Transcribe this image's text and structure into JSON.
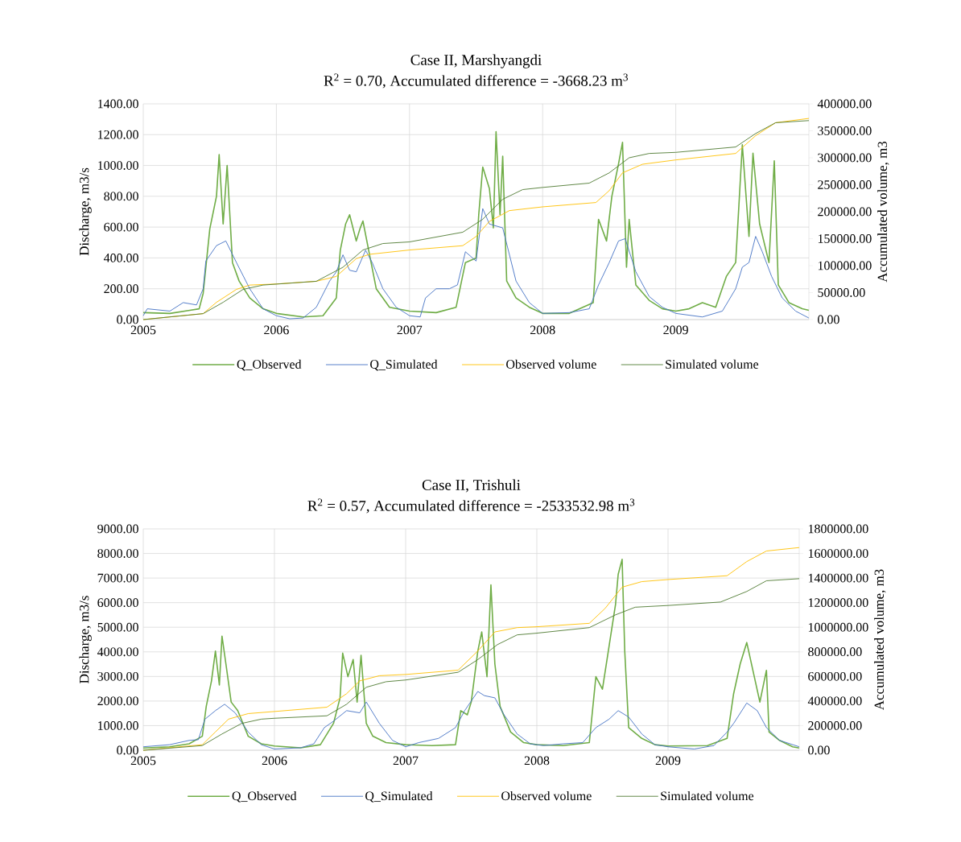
{
  "chart_data": [
    {
      "type": "line",
      "title": "Case II, Marshyangdi",
      "subtitle": "R$^{2}$ = 0.70, Accumulated difference = -3668.23 m$^{3}$",
      "ylabel": "Discharge, m3/s",
      "y2label": "Accumulated volume, m3",
      "xlim": [
        2005,
        2010
      ],
      "xticks": [
        2005,
        2006,
        2007,
        2008,
        2009
      ],
      "ylim": [
        0,
        1400
      ],
      "yticks": [
        {
          "value": 0,
          "label": "0.00"
        },
        {
          "value": 200,
          "label": "200.00"
        },
        {
          "value": 400,
          "label": "400.00"
        },
        {
          "value": 600,
          "label": "600.00"
        },
        {
          "value": 800,
          "label": "800.00"
        },
        {
          "value": 1000,
          "label": "1000.00"
        },
        {
          "value": 1200,
          "label": "1200.00"
        },
        {
          "value": 1400,
          "label": "1400.00"
        }
      ],
      "y2lim": [
        0,
        400000
      ],
      "y2ticks": [
        {
          "value": 0,
          "label": "0.00"
        },
        {
          "value": 50000,
          "label": "50000.00"
        },
        {
          "value": 100000,
          "label": "100000.00"
        },
        {
          "value": 150000,
          "label": "150000.00"
        },
        {
          "value": 200000,
          "label": "200000.00"
        },
        {
          "value": 250000,
          "label": "250000.00"
        },
        {
          "value": 300000,
          "label": "300000.00"
        },
        {
          "value": 350000,
          "label": "350000.00"
        },
        {
          "value": 400000,
          "label": "400000.00"
        }
      ],
      "grid": true,
      "legend": "bottom",
      "marker": "none",
      "line_style": "solid",
      "series": [
        {
          "name": "Q_Observed",
          "color": "#70ad47",
          "x": [
            2005,
            2005.2,
            2005.35,
            2005.42,
            2005.45,
            2005.5,
            2005.55,
            2005.57,
            2005.6,
            2005.63,
            2005.67,
            2005.72,
            2005.8,
            2005.9,
            2006,
            2006.2,
            2006.35,
            2006.45,
            2006.48,
            2006.52,
            2006.55,
            2006.6,
            2006.63,
            2006.65,
            2006.7,
            2006.75,
            2006.85,
            2007,
            2007.2,
            2007.35,
            2007.42,
            2007.5,
            2007.52,
            2007.55,
            2007.6,
            2007.63,
            2007.65,
            2007.68,
            2007.7,
            2007.73,
            2007.8,
            2007.9,
            2008,
            2008.2,
            2008.38,
            2008.42,
            2008.48,
            2008.52,
            2008.57,
            2008.6,
            2008.63,
            2008.65,
            2008.7,
            2008.8,
            2008.9,
            2009,
            2009.1,
            2009.2,
            2009.3,
            2009.38,
            2009.45,
            2009.5,
            2009.55,
            2009.58,
            2009.63,
            2009.7,
            2009.74,
            2009.77,
            2009.85,
            2009.95,
            2010
          ],
          "values": [
            45,
            40,
            60,
            70,
            170,
            590,
            800,
            1070,
            620,
            1000,
            370,
            250,
            140,
            70,
            40,
            17,
            25,
            140,
            450,
            620,
            680,
            510,
            595,
            640,
            420,
            200,
            80,
            55,
            45,
            80,
            370,
            400,
            680,
            990,
            850,
            595,
            1220,
            680,
            1060,
            250,
            140,
            80,
            40,
            40,
            110,
            650,
            510,
            800,
            1010,
            1150,
            340,
            650,
            225,
            125,
            70,
            55,
            70,
            110,
            80,
            280,
            370,
            1135,
            540,
            1080,
            620,
            370,
            1030,
            225,
            110,
            70,
            60
          ]
        },
        {
          "name": "Q_Simulated",
          "color": "#4472c4",
          "x": [
            2005,
            2005.03,
            2005.2,
            2005.3,
            2005.4,
            2005.45,
            2005.47,
            2005.55,
            2005.62,
            2005.7,
            2005.8,
            2005.9,
            2006,
            2006.1,
            2006.2,
            2006.3,
            2006.4,
            2006.45,
            2006.5,
            2006.55,
            2006.6,
            2006.67,
            2006.72,
            2006.8,
            2006.9,
            2007,
            2007.08,
            2007.12,
            2007.2,
            2007.3,
            2007.36,
            2007.42,
            2007.5,
            2007.55,
            2007.6,
            2007.7,
            2007.8,
            2007.9,
            2008,
            2008.2,
            2008.35,
            2008.42,
            2008.5,
            2008.57,
            2008.62,
            2008.7,
            2008.8,
            2008.9,
            2009,
            2009.2,
            2009.35,
            2009.45,
            2009.5,
            2009.55,
            2009.6,
            2009.65,
            2009.72,
            2009.8,
            2009.9,
            2010
          ],
          "values": [
            25,
            70,
            55,
            110,
            95,
            200,
            380,
            480,
            510,
            370,
            200,
            70,
            25,
            5,
            10,
            80,
            250,
            310,
            420,
            320,
            310,
            450,
            370,
            200,
            80,
            25,
            17,
            140,
            200,
            200,
            225,
            440,
            380,
            720,
            620,
            595,
            250,
            110,
            40,
            45,
            70,
            225,
            370,
            510,
            525,
            310,
            150,
            80,
            40,
            17,
            55,
            200,
            340,
            370,
            540,
            440,
            280,
            140,
            55,
            10
          ]
        },
        {
          "name": "Observed volume",
          "color": "#ffc000",
          "axis": "y2",
          "x": [
            2005,
            2005.45,
            2005.55,
            2005.7,
            2005.8,
            2006,
            2006.3,
            2006.45,
            2006.6,
            2006.7,
            2007,
            2007.4,
            2007.5,
            2007.6,
            2007.75,
            2008,
            2008.4,
            2008.5,
            2008.6,
            2008.75,
            2009,
            2009.45,
            2009.6,
            2009.75,
            2010
          ],
          "values": [
            0,
            11000,
            32000,
            56000,
            64000,
            66000,
            71000,
            80000,
            113000,
            121000,
            129000,
            137000,
            154000,
            182000,
            202000,
            209000,
            217000,
            239000,
            272000,
            288000,
            296000,
            308000,
            341000,
            365000,
            373000
          ]
        },
        {
          "name": "Simulated volume",
          "color": "#4f7a32",
          "axis": "y2",
          "x": [
            2005,
            2005.45,
            2005.6,
            2005.75,
            2005.9,
            2006.3,
            2006.5,
            2006.65,
            2006.8,
            2007,
            2007.4,
            2007.55,
            2007.7,
            2007.85,
            2008,
            2008.35,
            2008.5,
            2008.65,
            2008.8,
            2009,
            2009.45,
            2009.6,
            2009.75,
            2010
          ],
          "values": [
            0,
            11000,
            32000,
            56000,
            64000,
            71000,
            97000,
            129000,
            141000,
            144000,
            162000,
            186000,
            223000,
            241000,
            245000,
            253000,
            272000,
            300000,
            308000,
            310000,
            320000,
            345000,
            365000,
            369000
          ]
        }
      ]
    },
    {
      "type": "line",
      "title": "Case II, Trishuli",
      "subtitle": "R$^{2}$ = 0.57, Accumulated difference = -2533532.98 m$^{3}$",
      "ylabel": "Discharge, m3/s",
      "y2label": "Accumulated volume, m3",
      "xlim": [
        2005,
        2010
      ],
      "xticks": [
        2005,
        2006,
        2007,
        2008,
        2009
      ],
      "ylim": [
        0,
        9000
      ],
      "yticks": [
        {
          "value": 0,
          "label": "0.00"
        },
        {
          "value": 1000,
          "label": "1000.00"
        },
        {
          "value": 2000,
          "label": "2000.00"
        },
        {
          "value": 3000,
          "label": "3000.00"
        },
        {
          "value": 4000,
          "label": "4000.00"
        },
        {
          "value": 5000,
          "label": "5000.00"
        },
        {
          "value": 6000,
          "label": "6000.00"
        },
        {
          "value": 7000,
          "label": "7000.00"
        },
        {
          "value": 8000,
          "label": "8000.00"
        },
        {
          "value": 9000,
          "label": "9000.00"
        }
      ],
      "y2lim": [
        0,
        1800000
      ],
      "y2ticks": [
        {
          "value": 0,
          "label": "0.00"
        },
        {
          "value": 200000,
          "label": "200000.00"
        },
        {
          "value": 400000,
          "label": "400000.00"
        },
        {
          "value": 600000,
          "label": "600000.00"
        },
        {
          "value": 800000,
          "label": "800000.00"
        },
        {
          "value": 1000000,
          "label": "1000000.00"
        },
        {
          "value": 1200000,
          "label": "1200000.00"
        },
        {
          "value": 1400000,
          "label": "1400000.00"
        },
        {
          "value": 1600000,
          "label": "1600000.00"
        },
        {
          "value": 1800000,
          "label": "1800000.00"
        }
      ],
      "grid": true,
      "legend": "bottom",
      "marker": "none",
      "line_style": "solid",
      "series": [
        {
          "name": "Q_Observed",
          "color": "#70ad47",
          "x": [
            2005,
            2005.2,
            2005.35,
            2005.45,
            2005.48,
            2005.52,
            2005.55,
            2005.58,
            2005.6,
            2005.63,
            2005.67,
            2005.72,
            2005.8,
            2005.9,
            2006,
            2006.2,
            2006.35,
            2006.45,
            2006.5,
            2006.52,
            2006.56,
            2006.6,
            2006.63,
            2006.66,
            2006.7,
            2006.75,
            2006.85,
            2007,
            2007.2,
            2007.38,
            2007.42,
            2007.47,
            2007.5,
            2007.55,
            2007.58,
            2007.62,
            2007.65,
            2007.68,
            2007.72,
            2007.8,
            2007.9,
            2008,
            2008.2,
            2008.4,
            2008.45,
            2008.5,
            2008.55,
            2008.6,
            2008.62,
            2008.65,
            2008.67,
            2008.7,
            2008.8,
            2008.9,
            2009,
            2009.3,
            2009.45,
            2009.5,
            2009.55,
            2009.6,
            2009.65,
            2009.7,
            2009.75,
            2009.77,
            2009.85,
            2009.95,
            2010
          ],
          "values": [
            90,
            140,
            260,
            570,
            1780,
            2820,
            4030,
            2650,
            4640,
            3510,
            1960,
            1610,
            570,
            260,
            170,
            100,
            225,
            1090,
            2130,
            3950,
            2990,
            3690,
            1960,
            3860,
            1090,
            570,
            310,
            225,
            190,
            225,
            1610,
            1440,
            1960,
            4030,
            4810,
            2990,
            6720,
            3510,
            1780,
            740,
            310,
            225,
            190,
            310,
            2990,
            2480,
            4210,
            5940,
            7150,
            7760,
            4030,
            920,
            480,
            225,
            170,
            190,
            480,
            2300,
            3510,
            4380,
            3170,
            1960,
            3250,
            740,
            400,
            140,
            90
          ]
        },
        {
          "name": "Q_Simulated",
          "color": "#4472c4",
          "x": [
            2005,
            2005.2,
            2005.35,
            2005.42,
            2005.47,
            2005.55,
            2005.62,
            2005.7,
            2005.8,
            2005.9,
            2006,
            2006.2,
            2006.3,
            2006.38,
            2006.45,
            2006.55,
            2006.65,
            2006.7,
            2006.8,
            2006.9,
            2007,
            2007.1,
            2007.25,
            2007.38,
            2007.45,
            2007.55,
            2007.6,
            2007.68,
            2007.75,
            2007.85,
            2007.95,
            2008.05,
            2008.2,
            2008.35,
            2008.45,
            2008.55,
            2008.62,
            2008.7,
            2008.8,
            2008.9,
            2009,
            2009.2,
            2009.35,
            2009.45,
            2009.5,
            2009.6,
            2009.68,
            2009.75,
            2009.85,
            2010
          ],
          "values": [
            140,
            225,
            400,
            430,
            1260,
            1610,
            1870,
            1520,
            740,
            225,
            50,
            100,
            260,
            920,
            1180,
            1610,
            1520,
            1960,
            1090,
            400,
            140,
            310,
            480,
            920,
            1610,
            2390,
            2220,
            2130,
            1440,
            660,
            260,
            190,
            260,
            310,
            920,
            1260,
            1610,
            1350,
            660,
            225,
            140,
            50,
            190,
            740,
            1090,
            1920,
            1610,
            920,
            400,
            140
          ]
        },
        {
          "name": "Observed volume",
          "color": "#ffc000",
          "axis": "y2",
          "x": [
            2005,
            2005.45,
            2005.55,
            2005.65,
            2005.8,
            2006,
            2006.4,
            2006.55,
            2006.65,
            2006.8,
            2007,
            2007.4,
            2007.55,
            2007.68,
            2007.85,
            2008,
            2008.4,
            2008.52,
            2008.65,
            2008.8,
            2009,
            2009.45,
            2009.6,
            2009.75,
            2010
          ],
          "values": [
            0,
            45000,
            149000,
            253000,
            298000,
            315000,
            350000,
            460000,
            564000,
            606000,
            616000,
            651000,
            807000,
            962000,
            997000,
            1004000,
            1032000,
            1153000,
            1326000,
            1371000,
            1388000,
            1419000,
            1534000,
            1620000,
            1648000
          ]
        },
        {
          "name": "Simulated volume",
          "color": "#4f7a32",
          "axis": "y2",
          "x": [
            2005,
            2005.45,
            2005.6,
            2005.75,
            2005.9,
            2006,
            2006.4,
            2006.55,
            2006.7,
            2006.85,
            2007,
            2007.4,
            2007.55,
            2007.7,
            2007.85,
            2008,
            2008.4,
            2008.6,
            2008.75,
            2009,
            2009.4,
            2009.6,
            2009.75,
            2010
          ],
          "values": [
            0,
            38000,
            132000,
            218000,
            253000,
            260000,
            280000,
            374000,
            512000,
            557000,
            571000,
            634000,
            737000,
            859000,
            938000,
            952000,
            997000,
            1101000,
            1163000,
            1177000,
            1205000,
            1291000,
            1378000,
            1395000
          ]
        }
      ]
    }
  ]
}
